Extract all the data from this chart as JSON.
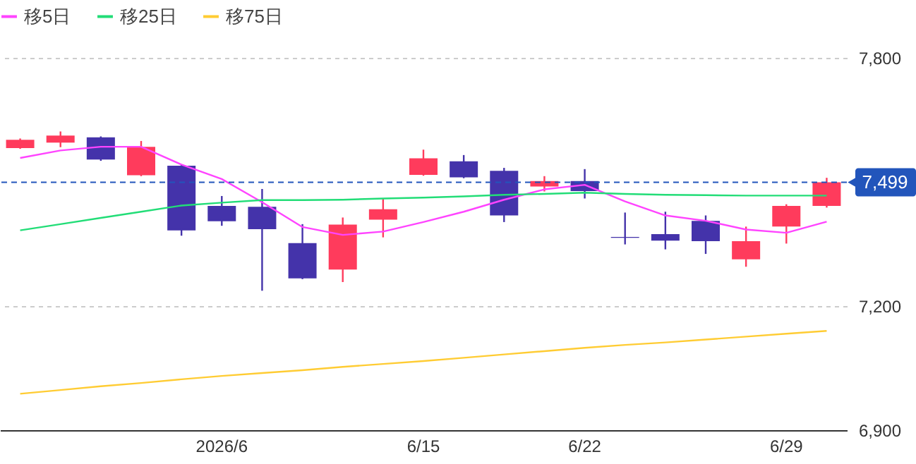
{
  "chart_data": {
    "type": "candlestick",
    "categories": [
      null,
      null,
      null,
      null,
      null,
      "2026/6",
      null,
      null,
      null,
      null,
      "6/15",
      null,
      null,
      null,
      "6/22",
      null,
      null,
      null,
      null,
      "6/29",
      null
    ],
    "ohlc": [
      [
        7582,
        7605,
        7580,
        7602
      ],
      [
        7595,
        7622,
        7584,
        7612
      ],
      [
        7608,
        7610,
        7551,
        7554
      ],
      [
        7516,
        7599,
        7514,
        7585
      ],
      [
        7539,
        7541,
        7370,
        7383
      ],
      [
        7442,
        7466,
        7394,
        7405
      ],
      [
        7440,
        7483,
        7237,
        7386
      ],
      [
        7352,
        7398,
        7265,
        7267
      ],
      [
        7288,
        7414,
        7258,
        7397
      ],
      [
        7409,
        7459,
        7366,
        7434
      ],
      [
        7517,
        7578,
        7515,
        7557
      ],
      [
        7550,
        7565,
        7509,
        7511
      ],
      [
        7527,
        7534,
        7403,
        7419
      ],
      [
        7489,
        7514,
        7477,
        7502
      ],
      [
        7502,
        7531,
        7460,
        7478
      ],
      [
        7367,
        7426,
        7349,
        7365
      ],
      [
        7374,
        7428,
        7337,
        7358
      ],
      [
        7406,
        7419,
        7326,
        7357
      ],
      [
        7313,
        7392,
        7295,
        7357
      ],
      [
        7392,
        7446,
        7351,
        7442
      ],
      [
        7442,
        7510,
        7438,
        7499
      ]
    ],
    "colors": [
      "#ff3b5c",
      "#ff3b5c",
      "#4433aa",
      "#ff3b5c",
      "#4433aa",
      "#4433aa",
      "#4433aa",
      "#4433aa",
      "#ff3b5c",
      "#ff3b5c",
      "#ff3b5c",
      "#4433aa",
      "#4433aa",
      "#ff3b5c",
      "#4433aa",
      "#4433aa",
      "#4433aa",
      "#4433aa",
      "#ff3b5c",
      "#ff3b5c",
      "#ff3b5c"
    ],
    "series": [
      {
        "name": "移5日",
        "type": "line",
        "color": "#ff44ff",
        "values": [
          7558,
          7576,
          7585,
          7585,
          7542,
          7507,
          7451,
          7391,
          7372,
          7380,
          7403,
          7428,
          7457,
          7482,
          7493,
          7453,
          7419,
          7406,
          7385,
          7377,
          7404
        ]
      },
      {
        "name": "移25日",
        "type": "line",
        "color": "#22dd77",
        "values": [
          7383,
          7398,
          7413,
          7428,
          7443,
          7450,
          7456,
          7456,
          7457,
          7460,
          7462,
          7465,
          7469,
          7471,
          7474,
          7471,
          7469,
          7468,
          7467,
          7467,
          7467
        ]
      },
      {
        "name": "移75日",
        "type": "line",
        "color": "#ffcc33",
        "values": [
          6988,
          6997,
          7006,
          7014,
          7023,
          7031,
          7038,
          7045,
          7053,
          7060,
          7067,
          7075,
          7083,
          7091,
          7099,
          7106,
          7112,
          7119,
          7126,
          7133,
          7140
        ]
      }
    ],
    "ylim": [
      6900,
      7800
    ],
    "yticks": [
      {
        "value": 6900,
        "label": "6,900"
      },
      {
        "value": 7200,
        "label": "7,200"
      },
      {
        "value": 7800,
        "label": "7,800"
      }
    ],
    "ref_lines": [
      {
        "axis": "y",
        "value": 7499,
        "label": "7,499",
        "color": "#2255bb",
        "line_style": "dashed"
      }
    ],
    "grid": "y",
    "legend": "top left",
    "marker": "none",
    "line_style": "solid"
  }
}
